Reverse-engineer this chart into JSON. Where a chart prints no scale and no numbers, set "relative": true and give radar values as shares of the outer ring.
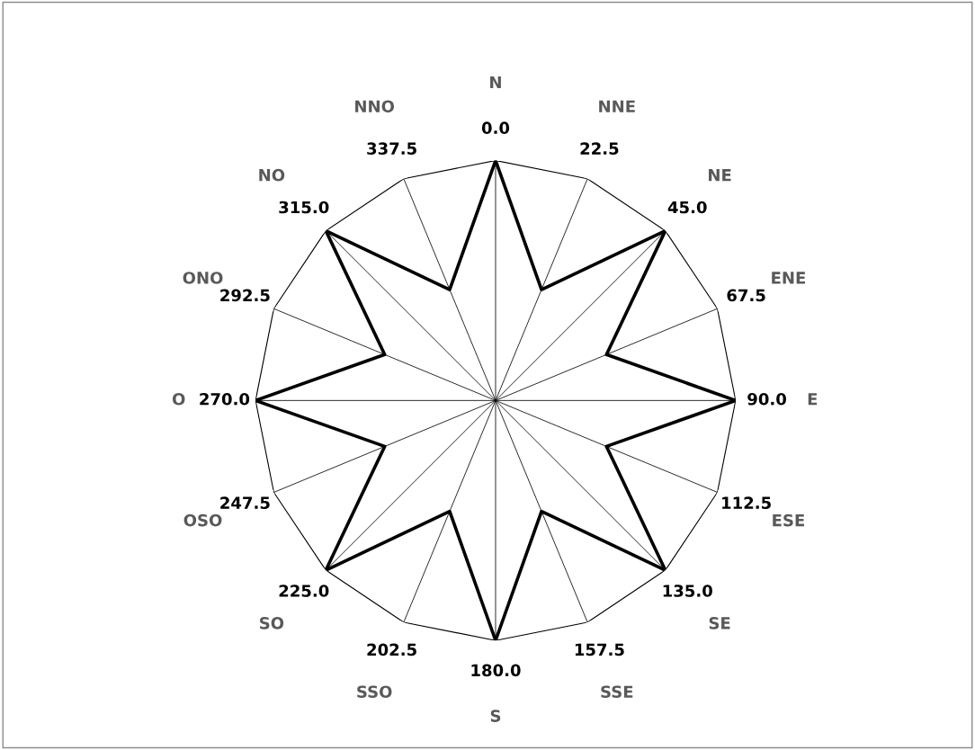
{
  "chart_data": {
    "type": "radar",
    "relative": true,
    "grid": true,
    "legend": false,
    "categories": [
      "0.0",
      "22.5",
      "45.0",
      "67.5",
      "90.0",
      "112.5",
      "135.0",
      "157.5",
      "180.0",
      "202.5",
      "225.0",
      "247.5",
      "270.0",
      "292.5",
      "315.0",
      "337.5"
    ],
    "series": [
      {
        "color": "#000000",
        "values": [
          1,
          0.5,
          1,
          0.5,
          1,
          0.5,
          1,
          0.5,
          1,
          0.5,
          1,
          0.5,
          1,
          0.5,
          1,
          0.5
        ]
      }
    ],
    "annotations": [
      "N",
      "NNE",
      "NE",
      "ENE",
      "E",
      "ESE",
      "SE",
      "SSE",
      "S",
      "SSO",
      "SO",
      "OSO",
      "O",
      "ONO",
      "NO",
      "NNO"
    ]
  }
}
